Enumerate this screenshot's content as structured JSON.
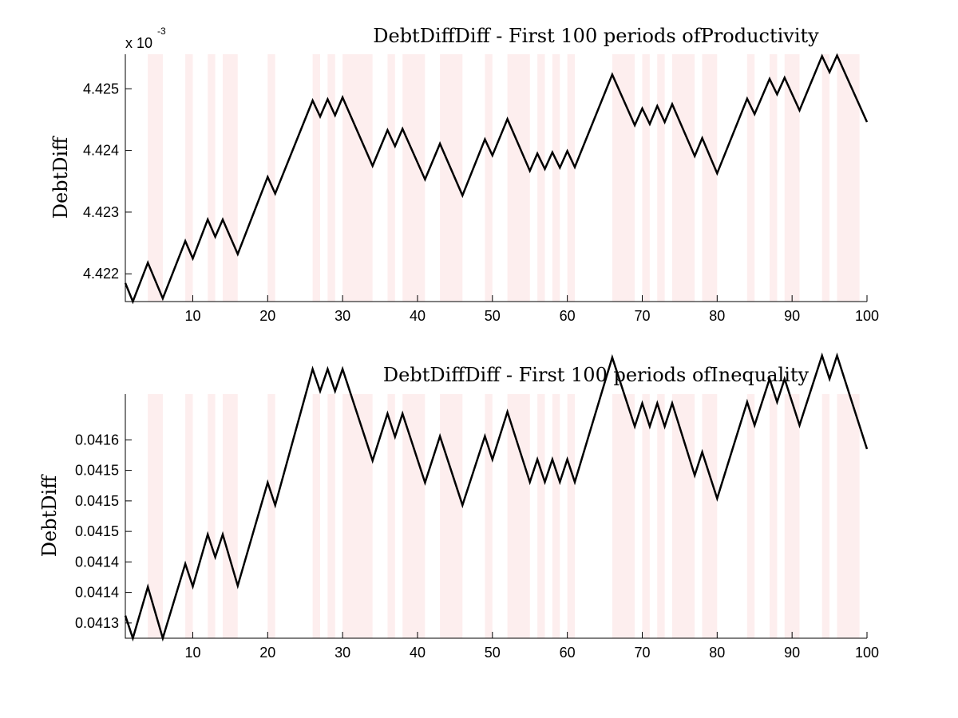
{
  "chart_data": [
    {
      "type": "line",
      "title": "DebtDiffDiff - First 100 periods ofProductivity",
      "ylabel": "DebtDiff",
      "y_multiplier_label": "x 10",
      "y_multiplier_exponent": "-3",
      "xlim": [
        1,
        100
      ],
      "ylim": [
        4.42155,
        4.42556
      ],
      "xticks": [
        10,
        20,
        30,
        40,
        50,
        60,
        70,
        80,
        90,
        100
      ],
      "xtick_labels": [
        "10",
        "20",
        "30",
        "40",
        "50",
        "60",
        "70",
        "80",
        "90",
        "100"
      ],
      "yticks": [
        4.422,
        4.423,
        4.424,
        4.425
      ],
      "ytick_labels": [
        "4.422",
        "4.423",
        "4.424",
        "4.425"
      ],
      "shaded_bands": [
        [
          4,
          6
        ],
        [
          9,
          10
        ],
        [
          12,
          13
        ],
        [
          14,
          16
        ],
        [
          20,
          21
        ],
        [
          26,
          27
        ],
        [
          28,
          29
        ],
        [
          30,
          34
        ],
        [
          36,
          37
        ],
        [
          38,
          41
        ],
        [
          43,
          46
        ],
        [
          49,
          50
        ],
        [
          52,
          55
        ],
        [
          56,
          57
        ],
        [
          58,
          59
        ],
        [
          60,
          61
        ],
        [
          66,
          69
        ],
        [
          70,
          71
        ],
        [
          72,
          73
        ],
        [
          74,
          77
        ],
        [
          78,
          80
        ],
        [
          84,
          85
        ],
        [
          87,
          88
        ],
        [
          89,
          91
        ],
        [
          94,
          95
        ],
        [
          96,
          99
        ]
      ],
      "band_color": "#fdeeee",
      "line_color": "#000000",
      "grid": false,
      "x": [
        1,
        2,
        4,
        6,
        9,
        10,
        12,
        13,
        14,
        16,
        20,
        21,
        26,
        27,
        28,
        29,
        30,
        34,
        36,
        37,
        38,
        41,
        43,
        46,
        49,
        50,
        52,
        55,
        56,
        57,
        58,
        59,
        60,
        61,
        66,
        69,
        70,
        71,
        72,
        73,
        74,
        77,
        78,
        80,
        84,
        85,
        87,
        88,
        89,
        91,
        94,
        95,
        96,
        100
      ],
      "values": [
        4.42185,
        4.42155,
        4.42218,
        4.4216,
        4.42253,
        4.42225,
        4.42288,
        4.4226,
        4.42288,
        4.42232,
        4.42357,
        4.4233,
        4.42481,
        4.42455,
        4.42483,
        4.42457,
        4.42486,
        4.42375,
        4.42433,
        4.42407,
        4.42435,
        4.42353,
        4.42411,
        4.42327,
        4.42418,
        4.42392,
        4.42451,
        4.42367,
        4.42395,
        4.4237,
        4.42397,
        4.42372,
        4.42399,
        4.42373,
        4.42523,
        4.42441,
        4.42468,
        4.42443,
        4.42472,
        4.42446,
        4.42475,
        4.42391,
        4.4242,
        4.42363,
        4.42484,
        4.42459,
        4.42516,
        4.42491,
        4.42518,
        4.42465,
        4.42553,
        4.42527,
        4.42554,
        4.42446
      ]
    },
    {
      "type": "line",
      "title": "DebtDiffDiff - First 100 periods ofInequality",
      "ylabel": "DebtDiff",
      "xlim": [
        1,
        100
      ],
      "ylim": [
        0.041275,
        0.041675
      ],
      "xticks": [
        10,
        20,
        30,
        40,
        50,
        60,
        70,
        80,
        90,
        100
      ],
      "xtick_labels": [
        "10",
        "20",
        "30",
        "40",
        "50",
        "60",
        "70",
        "80",
        "90",
        "100"
      ],
      "yticks": [
        0.0413,
        0.04135,
        0.0414,
        0.04145,
        0.0415,
        0.04155,
        0.0416
      ],
      "ytick_labels": [
        "0.0413",
        "0.0414",
        "0.0414",
        "0.0415",
        "0.0415",
        "0.0415",
        "0.0416"
      ],
      "shaded_bands": [
        [
          4,
          6
        ],
        [
          9,
          10
        ],
        [
          12,
          13
        ],
        [
          14,
          16
        ],
        [
          20,
          21
        ],
        [
          26,
          27
        ],
        [
          28,
          29
        ],
        [
          30,
          34
        ],
        [
          36,
          37
        ],
        [
          38,
          41
        ],
        [
          43,
          46
        ],
        [
          49,
          50
        ],
        [
          52,
          55
        ],
        [
          56,
          57
        ],
        [
          58,
          59
        ],
        [
          60,
          61
        ],
        [
          66,
          69
        ],
        [
          70,
          71
        ],
        [
          72,
          73
        ],
        [
          74,
          77
        ],
        [
          78,
          80
        ],
        [
          84,
          85
        ],
        [
          87,
          88
        ],
        [
          89,
          91
        ],
        [
          94,
          95
        ],
        [
          96,
          99
        ]
      ],
      "band_color": "#fdeeee",
      "line_color": "#000000",
      "grid": false,
      "x": [
        1,
        2,
        4,
        6,
        9,
        10,
        12,
        13,
        14,
        16,
        20,
        21,
        26,
        27,
        28,
        29,
        30,
        34,
        36,
        37,
        38,
        41,
        43,
        46,
        49,
        50,
        52,
        55,
        56,
        57,
        58,
        59,
        60,
        61,
        66,
        69,
        70,
        71,
        72,
        73,
        74,
        77,
        78,
        80,
        84,
        85,
        87,
        88,
        89,
        91,
        94,
        95,
        96,
        100
      ],
      "values": [
        0.041312,
        0.041275,
        0.041359,
        0.041275,
        0.041397,
        0.04136,
        0.041445,
        0.041408,
        0.041445,
        0.041361,
        0.04153,
        0.041493,
        0.041716,
        0.04168,
        0.041716,
        0.04168,
        0.041716,
        0.041566,
        0.041643,
        0.041605,
        0.041643,
        0.04153,
        0.041606,
        0.041493,
        0.041606,
        0.041568,
        0.041646,
        0.041531,
        0.041568,
        0.041531,
        0.041568,
        0.041531,
        0.041568,
        0.041531,
        0.041735,
        0.041622,
        0.04166,
        0.041622,
        0.04166,
        0.041622,
        0.04166,
        0.041542,
        0.04158,
        0.041504,
        0.041662,
        0.041624,
        0.0417,
        0.041662,
        0.0417,
        0.041624,
        0.041738,
        0.0417,
        0.041738,
        0.041585
      ]
    }
  ]
}
